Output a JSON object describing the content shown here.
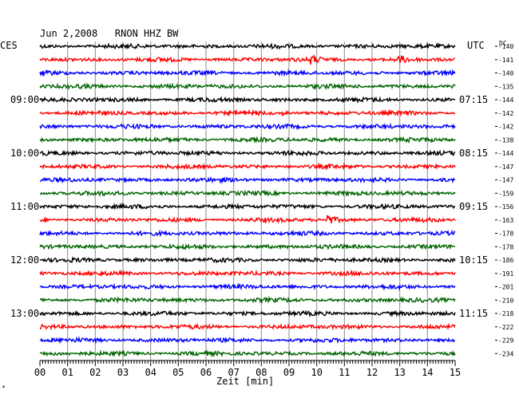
{
  "chart_data": {
    "type": "line",
    "title": "Jun 2,2008   RNON HHZ BW",
    "header_left": "CES",
    "header_right": "UTC",
    "dc_label": "DC",
    "xlabel": "Zeit [min]",
    "xlim": [
      0,
      15
    ],
    "x_ticks": [
      "00",
      "01",
      "02",
      "03",
      "04",
      "05",
      "06",
      "07",
      "08",
      "09",
      "10",
      "11",
      "12",
      "13",
      "14",
      "15"
    ],
    "trace_count": 24,
    "trace_colors": [
      "#000000",
      "#ff0000",
      "#0000ff",
      "#006400"
    ],
    "left_hour_labels": [
      {
        "trace": 4,
        "text": "09:00"
      },
      {
        "trace": 8,
        "text": "10:00"
      },
      {
        "trace": 12,
        "text": "11:00"
      },
      {
        "trace": 16,
        "text": "12:00"
      },
      {
        "trace": 20,
        "text": "13:00"
      }
    ],
    "right_hour_labels": [
      {
        "trace": 4,
        "text": "07:15"
      },
      {
        "trace": 8,
        "text": "08:15"
      },
      {
        "trace": 12,
        "text": "09:15"
      },
      {
        "trace": 16,
        "text": "10:15"
      },
      {
        "trace": 20,
        "text": "11:15"
      }
    ],
    "dc_offsets": [
      -140,
      -141,
      -140,
      -135,
      -144,
      -142,
      -142,
      -138,
      -144,
      -147,
      -147,
      -159,
      -156,
      -163,
      -178,
      -178,
      -186,
      -191,
      -201,
      -210,
      -218,
      -222,
      -229,
      -234
    ],
    "events": [
      {
        "trace": 1,
        "minute": 9.8,
        "amplitude": 1.8
      },
      {
        "trace": 1,
        "minute": 13.0,
        "amplitude": 1.6
      },
      {
        "trace": 5,
        "minute": 8.8,
        "amplitude": 1.5
      },
      {
        "trace": 13,
        "minute": 10.4,
        "amplitude": 3.5
      }
    ],
    "footnote": "*"
  }
}
